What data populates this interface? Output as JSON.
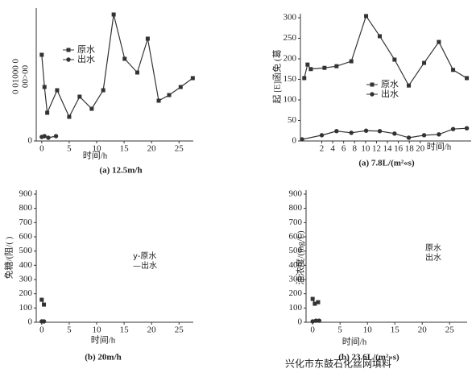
{
  "chart_data": [
    {
      "type": "line",
      "caption": "(a) 12.5m/h",
      "xlabel": "时间/h",
      "ylabel": [
        "0 01000 0",
        "00>00"
      ],
      "xlim": [
        -1,
        27.6
      ],
      "ylim": [
        0,
        320
      ],
      "xticks": [
        0,
        5,
        10,
        15,
        20,
        25
      ],
      "yticks": [
        0
      ],
      "legend_markers": true,
      "series": [
        {
          "name": "原水",
          "color": "#333333",
          "marker": "square",
          "x": [
            0,
            0.5,
            1,
            2.8,
            5,
            6.9,
            9.1,
            11.2,
            13.1,
            15.1,
            17.4,
            19.3,
            21.3,
            23.2,
            25.3,
            27.5
          ],
          "values": [
            214,
            134,
            70,
            126,
            60,
            110,
            80,
            126,
            314,
            204,
            170,
            254,
            100,
            114,
            134,
            156
          ]
        },
        {
          "name": "出水",
          "color": "#333333",
          "marker": "circle",
          "x": [
            0,
            0.5,
            1.2,
            2.6
          ],
          "values": [
            10,
            12,
            8,
            12
          ]
        }
      ]
    },
    {
      "type": "line",
      "caption": "(a) 7.8L/(m²«s)",
      "xlabel": "时间/h",
      "ylabel": [
        "起 [E]函免 (葛"
      ],
      "xlim": [
        -1.9,
        29.3
      ],
      "ylim": [
        0,
        300
      ],
      "xticks": [
        2,
        4,
        6,
        8,
        10,
        12,
        14,
        16,
        18,
        20
      ],
      "yticks": [
        0,
        50,
        100,
        150,
        200,
        250,
        300
      ],
      "legend_markers": true,
      "series": [
        {
          "name": "原水",
          "color": "#333333",
          "marker": "square",
          "x": [
            -1.2,
            -0.6,
            0,
            2.5,
            4.7,
            7.4,
            10.1,
            12.6,
            15.3,
            17.9,
            20.7,
            23.4,
            26,
            28.5
          ],
          "values": [
            153,
            186,
            175,
            178,
            182,
            194,
            304,
            255,
            198,
            135,
            190,
            241,
            173,
            153
          ]
        },
        {
          "name": "出水",
          "color": "#333333",
          "marker": "circle",
          "x": [
            -1.6,
            2,
            4.7,
            7.4,
            10.1,
            12.6,
            15.3,
            17.9,
            20.7,
            23.4,
            26,
            28.5
          ],
          "values": [
            4,
            14,
            24,
            20,
            25,
            24,
            18,
            8,
            14,
            16,
            29,
            31
          ]
        }
      ]
    },
    {
      "type": "line",
      "caption": "(b) 20m/h",
      "xlabel": "时间/h",
      "ylabel": [
        "免糖/(阻/( )"
      ],
      "xlim": [
        -1,
        27.6
      ],
      "ylim": [
        0,
        900
      ],
      "xticks": [
        0,
        5,
        10,
        15,
        20,
        25
      ],
      "yticks": [
        0,
        100,
        200,
        300,
        400,
        500,
        600,
        700,
        800,
        900
      ],
      "legend_markers": false,
      "series": [
        {
          "name": "y-原水",
          "color": "#333333",
          "marker": "square",
          "x": [
            0,
            0.4
          ],
          "values": [
            158,
            124
          ]
        },
        {
          "name": "—出水",
          "color": "#333333",
          "marker": "circle",
          "x": [
            0,
            0.4
          ],
          "values": [
            6,
            6
          ]
        }
      ]
    },
    {
      "type": "line",
      "caption": "(b) 23.6L/(m²»s)",
      "xlabel": "时间/h",
      "ylabel": [
        "油浓度/(mg/L)"
      ],
      "xlim": [
        -1.2,
        28.2
      ],
      "ylim": [
        0,
        900
      ],
      "xticks": [
        0,
        5,
        10,
        15,
        20,
        25
      ],
      "yticks": [
        0,
        100,
        200,
        300,
        400,
        500,
        600,
        700,
        800,
        900
      ],
      "legend_markers": false,
      "series": [
        {
          "name": "原水",
          "color": "#333333",
          "marker": "square",
          "x": [
            0,
            0.4,
            1
          ],
          "values": [
            164,
            130,
            141
          ]
        },
        {
          "name": "出水",
          "color": "#333333",
          "marker": "circle",
          "x": [
            0,
            0.6,
            1.2
          ],
          "values": [
            6,
            11,
            11
          ]
        }
      ]
    }
  ],
  "watermark": "兴化市东鼓石化丝网填料"
}
